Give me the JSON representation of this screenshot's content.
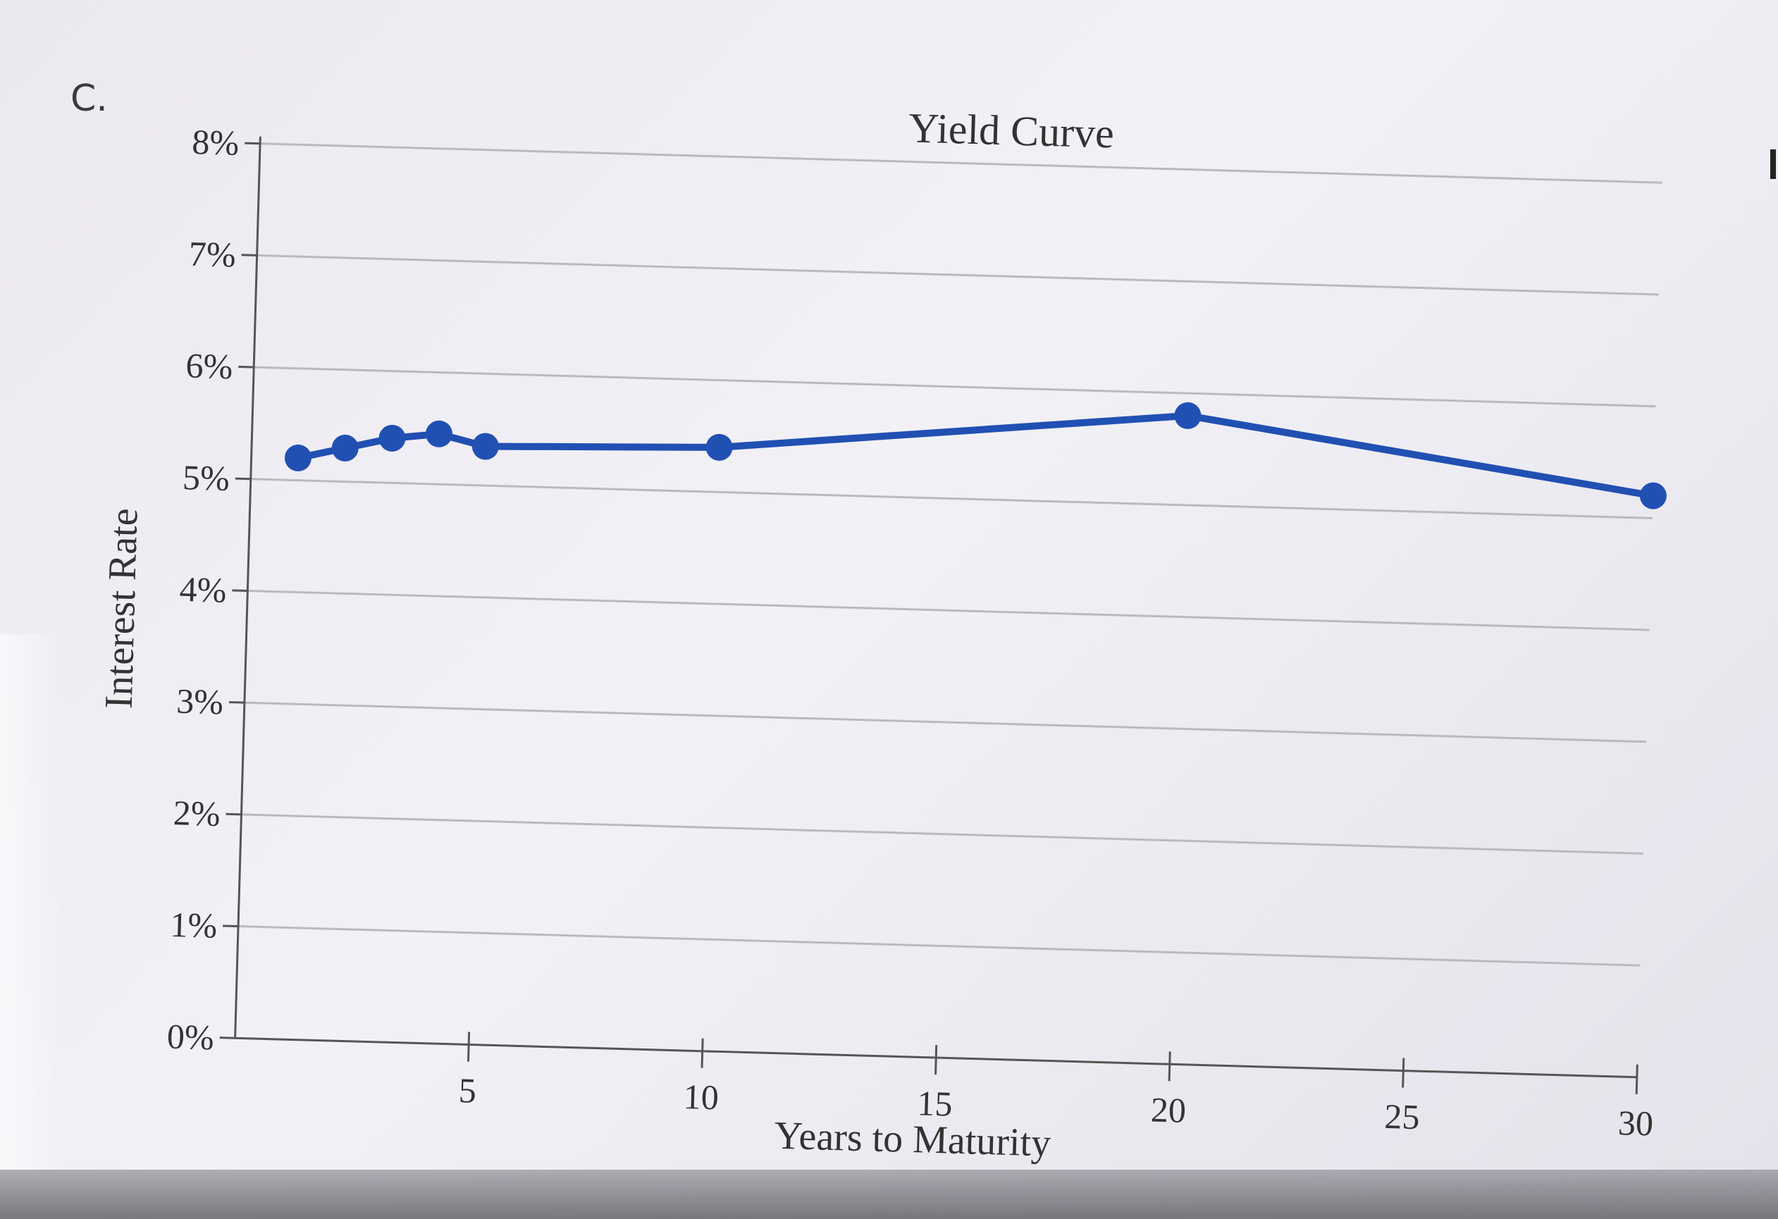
{
  "question": {
    "option_label": "C."
  },
  "chart_data": {
    "type": "line",
    "title": "Yield Curve",
    "xlabel": "Years to Maturity",
    "ylabel": "Interest Rate",
    "xlim": [
      0,
      30
    ],
    "ylim": [
      0,
      8
    ],
    "x_ticks": [
      5,
      10,
      15,
      20,
      25,
      30
    ],
    "x_tick_labels": [
      "5",
      "10",
      "15",
      "20",
      "25",
      "30"
    ],
    "y_ticks": [
      0,
      1,
      2,
      3,
      4,
      5,
      6,
      7,
      8
    ],
    "y_tick_labels": [
      "0%",
      "1%",
      "2%",
      "3%",
      "4%",
      "5%",
      "6%",
      "7%",
      "8%"
    ],
    "grid": true,
    "series": [
      {
        "color": "#2150b3",
        "x": [
          1,
          2,
          3,
          4,
          5,
          10,
          20,
          30
        ],
        "y": [
          5.2,
          5.3,
          5.4,
          5.45,
          5.35,
          5.4,
          5.8,
          5.2
        ]
      }
    ]
  }
}
